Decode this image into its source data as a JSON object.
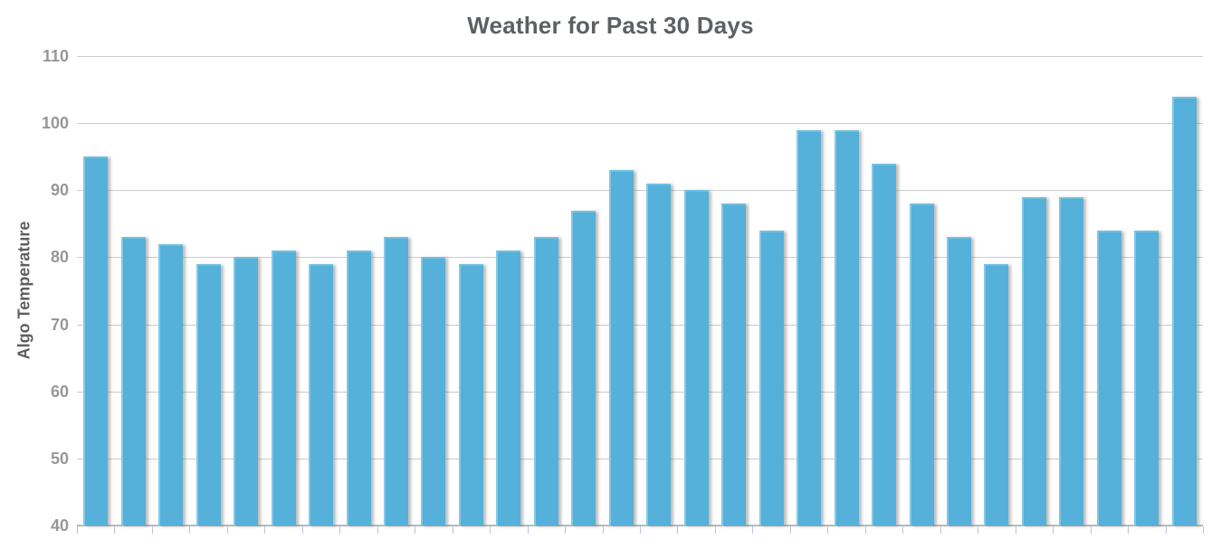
{
  "chart_data": {
    "type": "bar",
    "title": "Weather for Past 30 Days",
    "xlabel": "",
    "ylabel": "Algo Temperature",
    "ylim": [
      40,
      110
    ],
    "yticks": [
      110,
      100,
      90,
      80,
      70,
      60,
      50,
      40
    ],
    "x_tick_labels": [],
    "grid": true,
    "legend": false,
    "bar_count": 30,
    "values": [
      95,
      83,
      82,
      79,
      80,
      81,
      79,
      81,
      83,
      80,
      79,
      81,
      83,
      87,
      93,
      91,
      90,
      88,
      84,
      99,
      99,
      94,
      88,
      83,
      79,
      89,
      89,
      84,
      84,
      104
    ],
    "colors": {
      "bar": "#55b0da",
      "bar_edge_highlight": "#85c8e5",
      "bar_top_highlight": "#6fbfe0",
      "grid_line": "#cbcbcb",
      "axis_line": "#b3bac1",
      "tick_mark": "#b7c5d9",
      "tick_label": "#979797",
      "axis_title": "#5e5e5e",
      "title": "#5d6063"
    }
  }
}
